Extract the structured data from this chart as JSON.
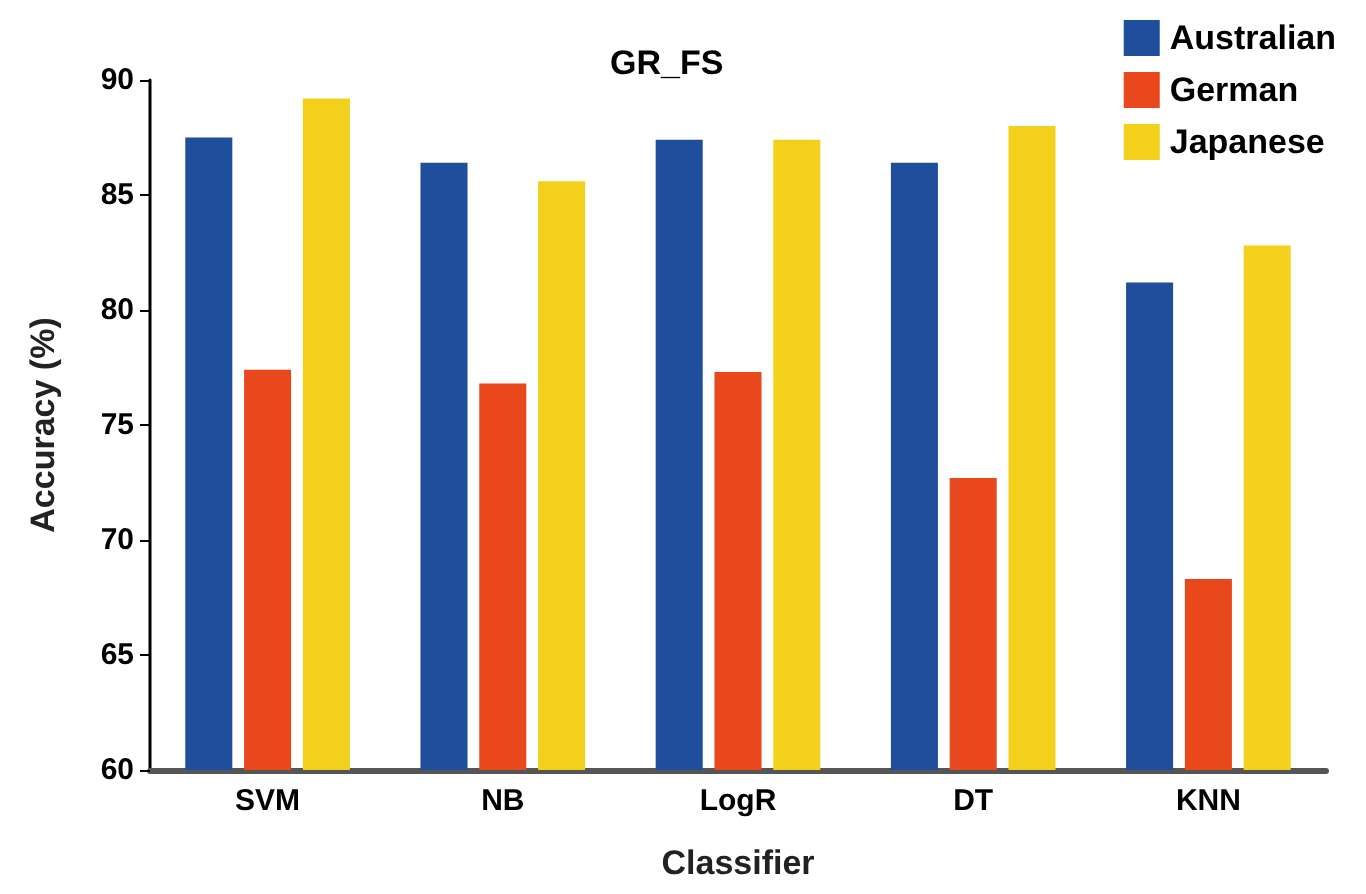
{
  "chart_data": {
    "type": "bar",
    "title": "GR_FS",
    "xlabel": "Classifier",
    "ylabel": "Accuracy (%)",
    "categories": [
      "SVM",
      "NB",
      "LogR",
      "DT",
      "KNN"
    ],
    "series": [
      {
        "name": "Australian",
        "color": "#1f4e9c",
        "values": [
          87.5,
          86.4,
          87.4,
          86.4,
          81.2
        ]
      },
      {
        "name": "German",
        "color": "#e8481c",
        "values": [
          77.4,
          76.8,
          77.3,
          72.7,
          68.3
        ]
      },
      {
        "name": "Japanese",
        "color": "#f2d01c",
        "values": [
          89.2,
          85.6,
          87.4,
          88.0,
          82.8
        ]
      }
    ],
    "ylim": [
      60,
      90
    ],
    "yticks": [
      60,
      65,
      70,
      75,
      80,
      85,
      90
    ],
    "grid": false,
    "legend": "top right"
  }
}
